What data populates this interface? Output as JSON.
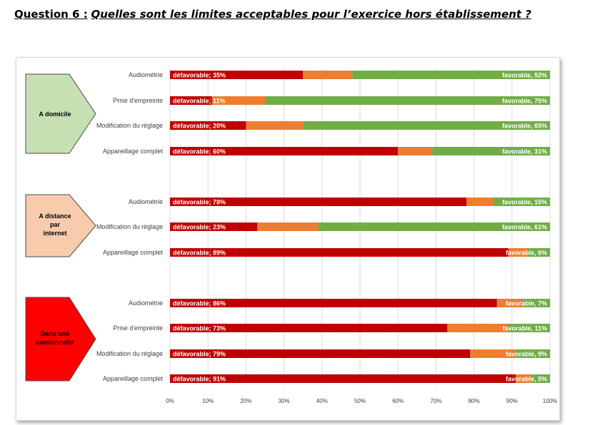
{
  "header": {
    "question_label": "Question 6 :",
    "question_text": "Quelles sont les limites acceptables pour l’exercice hors établissement ?"
  },
  "colors": {
    "defavorable": "#c00000",
    "neutre": "#ed7d31",
    "favorable": "#70ad47",
    "group_domicile": "#c6e0b4",
    "group_distance": "#f8cbad",
    "group_camionnette": "#ff0000"
  },
  "chart_data": {
    "type": "bar",
    "orientation": "horizontal-stacked-100",
    "xlim": [
      0,
      100
    ],
    "x_ticks": [
      "0%",
      "10%",
      "20%",
      "30%",
      "40%",
      "50%",
      "60%",
      "70%",
      "80%",
      "90%",
      "100%"
    ],
    "grid": true,
    "series_names": [
      "défavorable",
      "",
      "favorable"
    ],
    "groups": [
      {
        "name_lines": [
          "A domicile"
        ],
        "color_key": "group_domicile",
        "rows": [
          {
            "category": "Audiométrie",
            "defavorable": 35,
            "neutre": 13,
            "favorable": 52,
            "label_def": "défavorable; 35%",
            "label_fav": "favorable, 52%"
          },
          {
            "category": "Prise d'empreinte",
            "defavorable": 11,
            "neutre": 14,
            "favorable": 75,
            "label_def": "défavorable; 11%",
            "label_fav": "favorable, 75%"
          },
          {
            "category": "Modification du réglage",
            "defavorable": 20,
            "neutre": 15,
            "favorable": 65,
            "label_def": "défavorable; 20%",
            "label_fav": "favorable, 65%"
          },
          {
            "category": "Appareillage complet",
            "defavorable": 60,
            "neutre": 9,
            "favorable": 31,
            "label_def": "défavorable; 60%",
            "label_fav": "favorable, 31%"
          }
        ]
      },
      {
        "name_lines": [
          "A distance",
          "par",
          "internet"
        ],
        "color_key": "group_distance",
        "rows": [
          {
            "category": "Audiométrie",
            "defavorable": 78,
            "neutre": 7,
            "favorable": 15,
            "label_def": "défavorable; 78%",
            "label_fav": "favorable, 15%"
          },
          {
            "category": "Modification du réglage",
            "defavorable": 23,
            "neutre": 16,
            "favorable": 61,
            "label_def": "défavorable; 23%",
            "label_fav": "favorable, 61%"
          },
          {
            "category": "Appareillage complet",
            "defavorable": 89,
            "neutre": 5,
            "favorable": 6,
            "label_def": "défavorable; 89%",
            "label_fav": "favorable, 6%"
          }
        ]
      },
      {
        "name_lines": [
          "Dans une",
          "camionnette"
        ],
        "color_key": "group_camionnette",
        "rows": [
          {
            "category": "Audiométrie",
            "defavorable": 86,
            "neutre": 7,
            "favorable": 7,
            "label_def": "défavorable; 86%",
            "label_fav": "favorable, 7%"
          },
          {
            "category": "Prise d'empreinte",
            "defavorable": 73,
            "neutre": 16,
            "favorable": 11,
            "label_def": "défavorable; 73%",
            "label_fav": "favorable, 11%"
          },
          {
            "category": "Modification du réglage",
            "defavorable": 79,
            "neutre": 12,
            "favorable": 9,
            "label_def": "défavorable; 79%",
            "label_fav": "favorable, 9%"
          },
          {
            "category": "Appareillage complet",
            "defavorable": 91,
            "neutre": 4,
            "favorable": 5,
            "label_def": "défavorable; 91%",
            "label_fav": "favorable, 5%"
          }
        ]
      }
    ]
  }
}
